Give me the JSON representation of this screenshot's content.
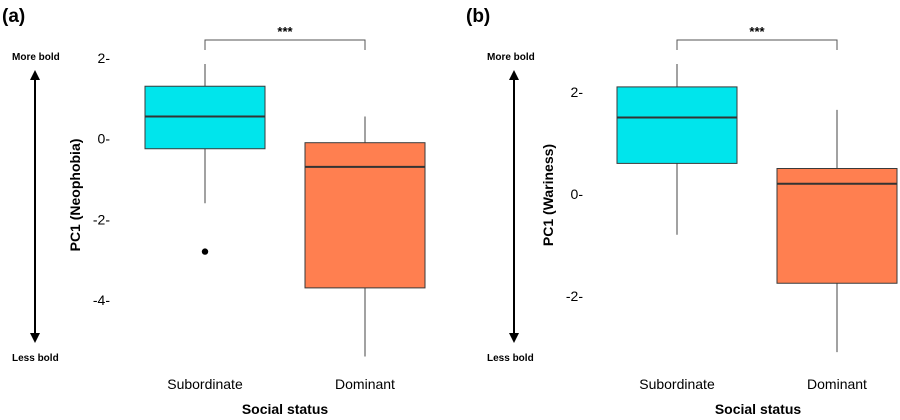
{
  "chart_data": [
    {
      "type": "box",
      "panel_label": "(a)",
      "ylabel": "PC1 (Neophobia)",
      "xlabel": "Social status",
      "categories": [
        "Subordinate",
        "Dominant"
      ],
      "yticks": [
        2,
        0,
        -2,
        -4
      ],
      "ytick_labels": [
        "2-",
        "0-",
        "-2-",
        "-4-"
      ],
      "ylim": [
        -5.4,
        2.1
      ],
      "arrow_top_label": "More bold",
      "arrow_bottom_label": "Less bold",
      "significance": "***",
      "boxes": [
        {
          "category": "Subordinate",
          "whisker_low": -1.6,
          "q1": -0.25,
          "median": 0.55,
          "q3": 1.3,
          "whisker_high": 1.85,
          "outliers": [
            -2.8
          ],
          "color": "#00e5ec"
        },
        {
          "category": "Dominant",
          "whisker_low": -5.4,
          "q1": -3.7,
          "median": -0.7,
          "q3": -0.1,
          "whisker_high": 0.55,
          "outliers": [],
          "color": "#ff7f50"
        }
      ]
    },
    {
      "type": "box",
      "panel_label": "(b)",
      "ylabel": "PC1 (Wariness)",
      "xlabel": "Social status",
      "categories": [
        "Subordinate",
        "Dominant"
      ],
      "yticks": [
        2,
        0,
        -2
      ],
      "ytick_labels": [
        "2-",
        "0-",
        "-2-"
      ],
      "ylim": [
        -3.1,
        2.55
      ],
      "arrow_top_label": "More bold",
      "arrow_bottom_label": "Less bold",
      "significance": "***",
      "boxes": [
        {
          "category": "Subordinate",
          "whisker_low": -0.8,
          "q1": 0.6,
          "median": 1.5,
          "q3": 2.1,
          "whisker_high": 2.55,
          "outliers": [],
          "color": "#00e5ec"
        },
        {
          "category": "Dominant",
          "whisker_low": -3.1,
          "q1": -1.75,
          "median": 0.2,
          "q3": 0.5,
          "whisker_high": 1.65,
          "outliers": [],
          "color": "#ff7f50"
        }
      ]
    }
  ]
}
